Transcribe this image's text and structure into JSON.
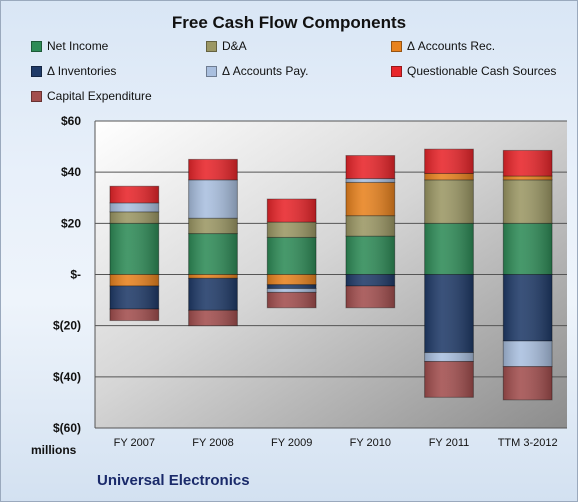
{
  "chart_data": {
    "type": "bar",
    "stacked": true,
    "title": "Free Cash Flow Components",
    "unit_label": "millions",
    "company": "Universal Electronics",
    "categories": [
      "FY 2007",
      "FY 2008",
      "FY 2009",
      "FY 2010",
      "FY 2011",
      "TTM 3-2012"
    ],
    "ylim": [
      -60,
      60
    ],
    "y_ticks": [
      60,
      40,
      20,
      0,
      -20,
      -40,
      -60
    ],
    "y_tick_labels": [
      "$60",
      "$40",
      "$20",
      "$-",
      "$(20)",
      "$(40)",
      "$(60)"
    ],
    "grid": true,
    "legend_position": "top",
    "series": [
      {
        "name": "Net Income",
        "color": "#2e8b57",
        "values": [
          20,
          16,
          14.5,
          15,
          20,
          20
        ]
      },
      {
        "name": "D&A",
        "color": "#9b9764",
        "values": [
          4.5,
          6,
          6,
          8,
          17,
          17
        ]
      },
      {
        "name": "Δ Accounts Rec.",
        "color": "#e8821e",
        "values": [
          -4.5,
          -1.5,
          -4,
          13,
          2.5,
          1.5
        ]
      },
      {
        "name": "Δ Inventories",
        "color": "#1f3a68",
        "values": [
          -9,
          -12.5,
          -1.5,
          -4.5,
          -30.5,
          -26
        ]
      },
      {
        "name": "Δ Accounts Pay.",
        "color": "#a9bfdf",
        "values": [
          3.5,
          15,
          -1.5,
          1.5,
          -3.5,
          -10
        ]
      },
      {
        "name": "Questionable Cash Sources",
        "color": "#e8252a",
        "values": [
          6.5,
          8,
          9,
          9,
          9.5,
          10
        ]
      },
      {
        "name": "Capital Expenditure",
        "color": "#a24e4e",
        "values": [
          -4.5,
          -6,
          -6,
          -8.5,
          -14,
          -13
        ]
      }
    ]
  }
}
